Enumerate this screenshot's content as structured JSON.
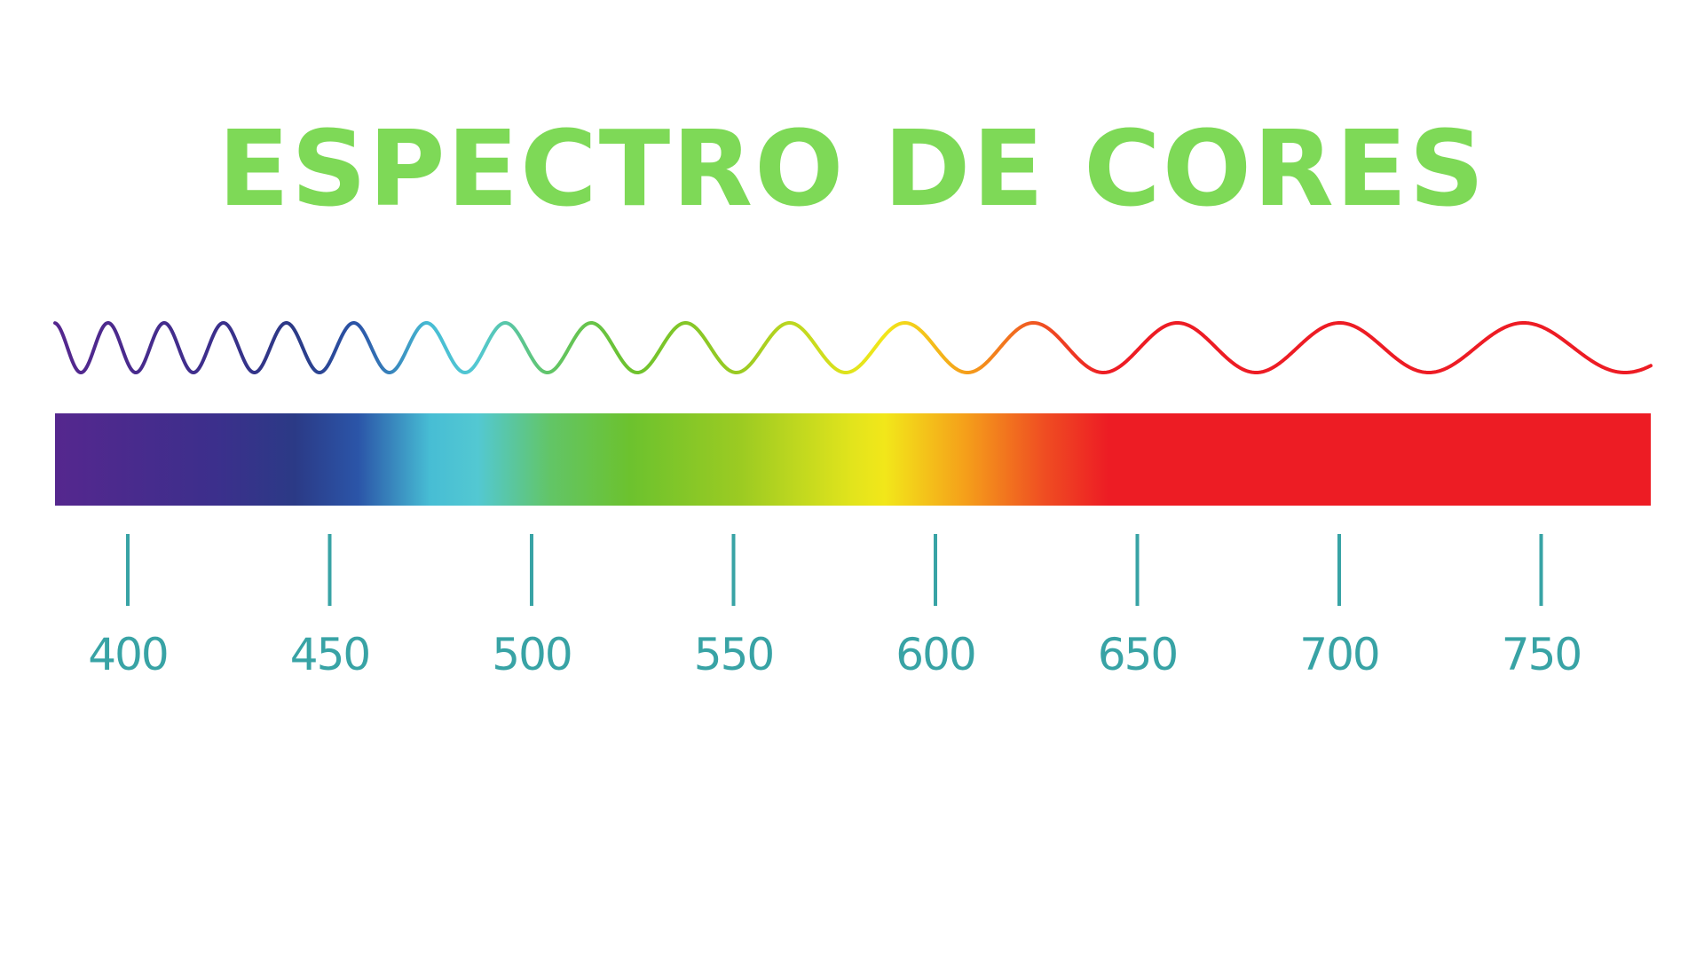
{
  "title": "ESPECTRO DE CORES",
  "title_color": "#7ed957",
  "tick_color": "#38a3a5",
  "wavelength_ticks": [
    "400",
    "450",
    "500",
    "550",
    "600",
    "650",
    "700",
    "750"
  ],
  "spectrum_colors": [
    {
      "stop": 0.0,
      "color": "#55278e"
    },
    {
      "stop": 0.1,
      "color": "#3c2f8c"
    },
    {
      "stop": 0.15,
      "color": "#2b3a86"
    },
    {
      "stop": 0.19,
      "color": "#2b55a8"
    },
    {
      "stop": 0.235,
      "color": "#47bdd4"
    },
    {
      "stop": 0.265,
      "color": "#53c8d2"
    },
    {
      "stop": 0.31,
      "color": "#62c567"
    },
    {
      "stop": 0.36,
      "color": "#6cc22e"
    },
    {
      "stop": 0.43,
      "color": "#9ccb22"
    },
    {
      "stop": 0.5,
      "color": "#e2e41c"
    },
    {
      "stop": 0.52,
      "color": "#f2e71a"
    },
    {
      "stop": 0.57,
      "color": "#f5a01a"
    },
    {
      "stop": 0.62,
      "color": "#ef4d22"
    },
    {
      "stop": 0.66,
      "color": "#ed1c24"
    },
    {
      "stop": 1.0,
      "color": "#ed1c24"
    }
  ]
}
